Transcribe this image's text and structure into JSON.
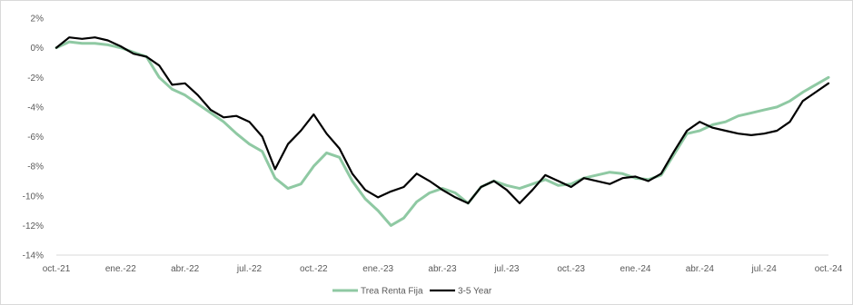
{
  "chart_data": {
    "type": "line",
    "title": "",
    "xlabel": "",
    "ylabel": "",
    "ylim": [
      -14,
      2
    ],
    "yticks": [
      {
        "value": 2,
        "label": "2%"
      },
      {
        "value": 0,
        "label": "0%"
      },
      {
        "value": -2,
        "label": "-2%"
      },
      {
        "value": -4,
        "label": "-4%"
      },
      {
        "value": -6,
        "label": "-6%"
      },
      {
        "value": -8,
        "label": "-8%"
      },
      {
        "value": -10,
        "label": "-10%"
      },
      {
        "value": -12,
        "label": "-12%"
      },
      {
        "value": -14,
        "label": "-14%"
      }
    ],
    "xticks": [
      "oct.-21",
      "ene.-22",
      "abr.-22",
      "jul.-22",
      "oct.-22",
      "ene.-23",
      "abr.-23",
      "jul.-23",
      "oct.-23",
      "ene.-24",
      "abr.-24",
      "jul.-24",
      "oct.-24"
    ],
    "grid": false,
    "legend_position": "bottom-center",
    "series": [
      {
        "name": "Trea Renta Fija",
        "color": "#8fc9a3",
        "x": [
          0,
          0.2,
          0.4,
          0.6,
          0.8,
          1.0,
          1.2,
          1.4,
          1.6,
          1.8,
          2.0,
          2.2,
          2.4,
          2.6,
          2.8,
          3.0,
          3.2,
          3.4,
          3.6,
          3.8,
          4.0,
          4.2,
          4.4,
          4.6,
          4.8,
          5.0,
          5.2,
          5.4,
          5.6,
          5.8,
          6.0,
          6.2,
          6.4,
          6.6,
          6.8,
          7.0,
          7.2,
          7.4,
          7.6,
          7.8,
          8.0,
          8.2,
          8.4,
          8.6,
          8.8,
          9.0,
          9.2,
          9.4,
          9.6,
          9.8,
          10.0,
          10.2,
          10.4,
          10.6,
          10.8,
          11.0,
          11.2,
          11.4,
          11.6,
          11.8,
          12.0
        ],
        "values": [
          0.0,
          0.4,
          0.3,
          0.3,
          0.2,
          0.0,
          -0.3,
          -0.6,
          -2.0,
          -2.8,
          -3.2,
          -3.8,
          -4.4,
          -5.0,
          -5.8,
          -6.5,
          -7.0,
          -8.8,
          -9.5,
          -9.2,
          -8.0,
          -7.1,
          -7.4,
          -9.0,
          -10.2,
          -11.0,
          -12.0,
          -11.5,
          -10.4,
          -9.8,
          -9.5,
          -9.8,
          -10.5,
          -9.4,
          -9.0,
          -9.3,
          -9.5,
          -9.2,
          -8.9,
          -9.3,
          -9.2,
          -8.8,
          -8.6,
          -8.4,
          -8.5,
          -8.8,
          -8.9,
          -8.6,
          -7.2,
          -5.8,
          -5.6,
          -5.2,
          -5.0,
          -4.6,
          -4.4,
          -4.2,
          -4.0,
          -3.6,
          -3.0,
          -2.5,
          -2.0
        ]
      },
      {
        "name": "3-5 Year",
        "color": "#000000",
        "x": [
          0,
          0.2,
          0.4,
          0.6,
          0.8,
          1.0,
          1.2,
          1.4,
          1.6,
          1.8,
          2.0,
          2.2,
          2.4,
          2.6,
          2.8,
          3.0,
          3.2,
          3.4,
          3.6,
          3.8,
          4.0,
          4.2,
          4.4,
          4.6,
          4.8,
          5.0,
          5.2,
          5.4,
          5.6,
          5.8,
          6.0,
          6.2,
          6.4,
          6.6,
          6.8,
          7.0,
          7.2,
          7.4,
          7.6,
          7.8,
          8.0,
          8.2,
          8.4,
          8.6,
          8.8,
          9.0,
          9.2,
          9.4,
          9.6,
          9.8,
          10.0,
          10.2,
          10.4,
          10.6,
          10.8,
          11.0,
          11.2,
          11.4,
          11.6,
          11.8,
          12.0
        ],
        "values": [
          0.0,
          0.7,
          0.6,
          0.7,
          0.5,
          0.1,
          -0.4,
          -0.6,
          -1.2,
          -2.5,
          -2.4,
          -3.2,
          -4.2,
          -4.7,
          -4.6,
          -5.0,
          -6.0,
          -8.2,
          -6.5,
          -5.6,
          -4.5,
          -5.8,
          -6.8,
          -8.5,
          -9.6,
          -10.1,
          -9.7,
          -9.4,
          -8.5,
          -9.0,
          -9.6,
          -10.1,
          -10.5,
          -9.4,
          -9.0,
          -9.6,
          -10.5,
          -9.6,
          -8.6,
          -9.0,
          -9.4,
          -8.8,
          -9.0,
          -9.2,
          -8.8,
          -8.7,
          -9.0,
          -8.5,
          -7.0,
          -5.6,
          -5.0,
          -5.4,
          -5.6,
          -5.8,
          -5.9,
          -5.8,
          -5.6,
          -5.0,
          -3.6,
          -3.0,
          -2.4
        ]
      }
    ]
  }
}
